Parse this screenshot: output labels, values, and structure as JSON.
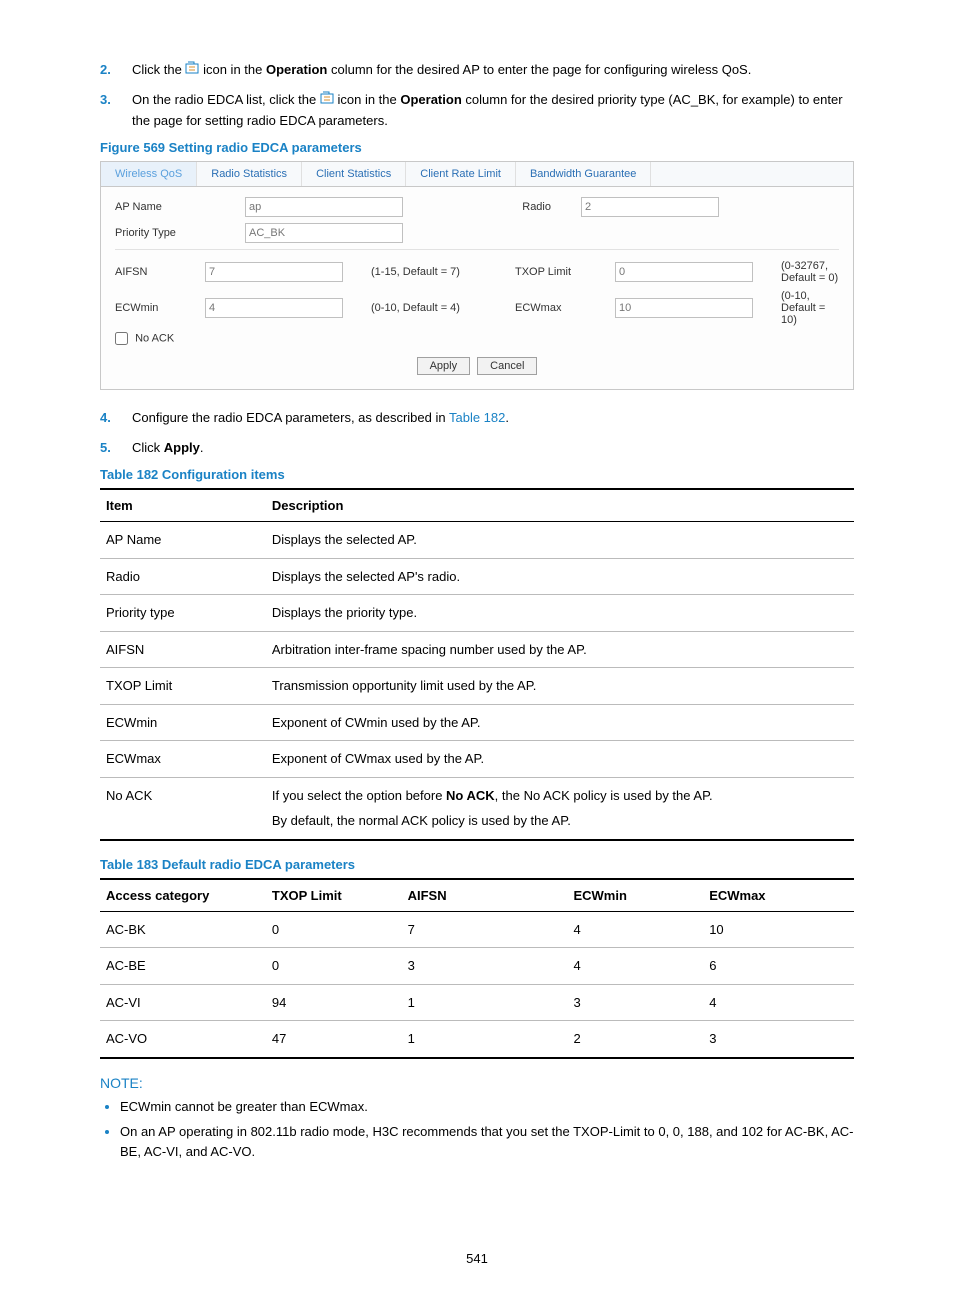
{
  "colors": {
    "accent": "#1a82c5",
    "text": "#000000",
    "background": "#ffffff",
    "border_light": "#c8c8c8",
    "input_border": "#c0c0c0",
    "tab_active_bg": "#e8f1fa",
    "table_rule": "#000000",
    "table_row_rule": "#bbbbbb"
  },
  "steps": {
    "s2": {
      "num": "2.",
      "pre": "Click the ",
      "mid1": " icon in the ",
      "op": "Operation",
      "post": " column for the desired AP to enter the page for configuring wireless QoS."
    },
    "s3": {
      "num": "3.",
      "pre": "On the radio EDCA list, click the ",
      "mid1": " icon in the ",
      "op": "Operation",
      "post": " column for the desired priority type (AC_BK, for example) to enter the page for setting radio EDCA parameters."
    },
    "s4": {
      "num": "4.",
      "pre": "Configure the radio EDCA parameters, as described in ",
      "link": "Table 182",
      "post": "."
    },
    "s5": {
      "num": "5.",
      "pre": "Click ",
      "apply": "Apply",
      "post": "."
    }
  },
  "figure": {
    "title": "Figure 569 Setting radio EDCA parameters",
    "tabs": [
      "Wireless QoS",
      "Radio Statistics",
      "Client Statistics",
      "Client Rate Limit",
      "Bandwidth Guarantee"
    ],
    "active_tab": 0,
    "labels": {
      "ap_name": "AP Name",
      "radio": "Radio",
      "priority_type": "Priority Type",
      "aifsn": "AIFSN",
      "txop": "TXOP Limit",
      "ecwmin": "ECWmin",
      "ecwmax": "ECWmax",
      "noack": "No ACK"
    },
    "values": {
      "ap_name": "ap",
      "radio": "2",
      "priority_type": "AC_BK",
      "aifsn": "7",
      "txop": "0",
      "ecwmin": "4",
      "ecwmax": "10",
      "noack_checked": false
    },
    "hints": {
      "aifsn": "(1-15, Default = 7)",
      "txop": "(0-32767, Default = 0)",
      "ecwmin": "(0-10, Default = 4)",
      "ecwmax": "(0-10, Default = 10)"
    },
    "buttons": {
      "apply": "Apply",
      "cancel": "Cancel"
    },
    "input_widths": {
      "wide": 150,
      "narrow": 150
    }
  },
  "table182": {
    "title": "Table 182 Configuration items",
    "columns": [
      "Item",
      "Description"
    ],
    "col_widths": [
      "22%",
      "78%"
    ],
    "rows": [
      [
        "AP Name",
        "Displays the selected AP."
      ],
      [
        "Radio",
        "Displays the selected AP's radio."
      ],
      [
        "Priority type",
        "Displays the priority type."
      ],
      [
        "AIFSN",
        "Arbitration inter-frame spacing number used by the AP."
      ],
      [
        "TXOP Limit",
        "Transmission opportunity limit used by the AP."
      ],
      [
        "ECWmin",
        "Exponent of CWmin used by the AP."
      ],
      [
        "ECWmax",
        "Exponent of CWmax used by the AP."
      ]
    ],
    "noack_row": {
      "item": "No ACK",
      "pre": "If you select the option before ",
      "bold": "No ACK",
      "post1": ", the No ACK policy is used by the AP.",
      "line2": "By default, the normal ACK policy is used by the AP."
    }
  },
  "table183": {
    "title": "Table 183 Default radio EDCA parameters",
    "columns": [
      "Access category",
      "TXOP Limit",
      "AIFSN",
      "ECWmin",
      "ECWmax"
    ],
    "col_widths": [
      "22%",
      "18%",
      "22%",
      "18%",
      "20%"
    ],
    "rows": [
      [
        "AC-BK",
        "0",
        "7",
        "4",
        "10"
      ],
      [
        "AC-BE",
        "0",
        "3",
        "4",
        "6"
      ],
      [
        "AC-VI",
        "94",
        "1",
        "3",
        "4"
      ],
      [
        "AC-VO",
        "47",
        "1",
        "2",
        "3"
      ]
    ]
  },
  "note": {
    "title": "NOTE:",
    "items": [
      "ECWmin cannot be greater than ECWmax.",
      "On an AP operating in 802.11b radio mode, H3C recommends that you set the TXOP-Limit to 0, 0, 188, and 102 for AC-BK, AC-BE, AC-VI, and AC-VO."
    ]
  },
  "page_number": "541"
}
